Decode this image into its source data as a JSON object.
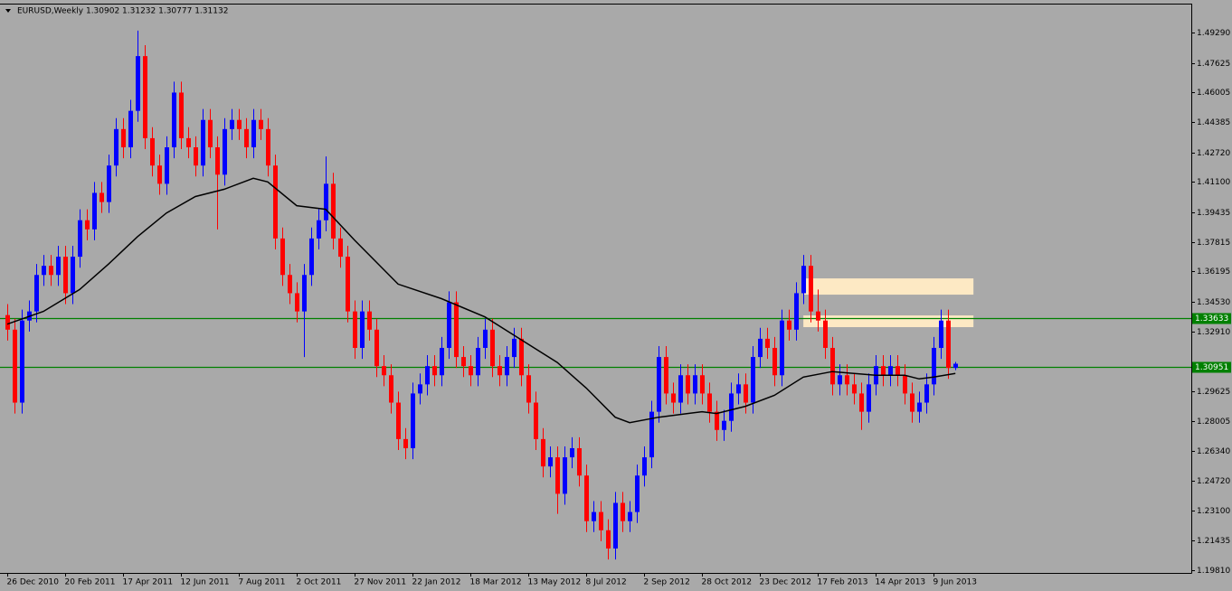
{
  "chart_data": {
    "type": "candlestick",
    "title": "EURUSD,Weekly  1.30902 1.31232 1.30777 1.31132",
    "up_color": "#0000ff",
    "down_color": "#ff0000",
    "xlim": [
      -1,
      163.6
    ],
    "ylim": [
      1.1966,
      1.5083
    ],
    "xticks": [
      {
        "value": 0,
        "label": "26 Dec 2010"
      },
      {
        "value": 8,
        "label": "20 Feb 2011"
      },
      {
        "value": 16,
        "label": "17 Apr 2011"
      },
      {
        "value": 24,
        "label": "12 Jun 2011"
      },
      {
        "value": 32,
        "label": "7 Aug 2011"
      },
      {
        "value": 40,
        "label": "2 Oct 2011"
      },
      {
        "value": 48,
        "label": "27 Nov 2011"
      },
      {
        "value": 56,
        "label": "22 Jan 2012"
      },
      {
        "value": 64,
        "label": "18 Mar 2012"
      },
      {
        "value": 72,
        "label": "13 May 2012"
      },
      {
        "value": 80,
        "label": "8 Jul 2012"
      },
      {
        "value": 88,
        "label": "2 Sep 2012"
      },
      {
        "value": 96,
        "label": "28 Oct 2012"
      },
      {
        "value": 104,
        "label": "23 Dec 2012"
      },
      {
        "value": 112,
        "label": "17 Feb 2013"
      },
      {
        "value": 120,
        "label": "14 Apr 2013"
      },
      {
        "value": 128,
        "label": "9 Jun 2013"
      }
    ],
    "yticks": [
      {
        "value": 1.4929,
        "label": "1.49290"
      },
      {
        "value": 1.47625,
        "label": "1.47625"
      },
      {
        "value": 1.46005,
        "label": "1.46005"
      },
      {
        "value": 1.44385,
        "label": "1.44385"
      },
      {
        "value": 1.4272,
        "label": "1.42720"
      },
      {
        "value": 1.411,
        "label": "1.41100"
      },
      {
        "value": 1.39435,
        "label": "1.39435"
      },
      {
        "value": 1.37815,
        "label": "1.37815"
      },
      {
        "value": 1.36195,
        "label": "1.36195"
      },
      {
        "value": 1.3453,
        "label": "1.34530"
      },
      {
        "value": 1.3291,
        "label": "1.32910"
      },
      {
        "value": 1.29625,
        "label": "1.29625"
      },
      {
        "value": 1.28005,
        "label": "1.28005"
      },
      {
        "value": 1.2634,
        "label": "1.26340"
      },
      {
        "value": 1.2472,
        "label": "1.24720"
      },
      {
        "value": 1.231,
        "label": "1.23100"
      },
      {
        "value": 1.21435,
        "label": "1.21435"
      },
      {
        "value": 1.1981,
        "label": "1.19810"
      }
    ],
    "open": [
      1.338,
      1.33,
      1.29,
      1.335,
      1.34,
      1.36,
      1.365,
      1.36,
      1.37,
      1.35,
      1.37,
      1.39,
      1.385,
      1.405,
      1.4,
      1.42,
      1.44,
      1.43,
      1.45,
      1.48,
      1.435,
      1.42,
      1.41,
      1.43,
      1.46,
      1.435,
      1.43,
      1.42,
      1.445,
      1.43,
      1.415,
      1.44,
      1.445,
      1.44,
      1.43,
      1.445,
      1.44,
      1.42,
      1.38,
      1.36,
      1.35,
      1.34,
      1.36,
      1.38,
      1.39,
      1.41,
      1.38,
      1.37,
      1.34,
      1.32,
      1.34,
      1.33,
      1.31,
      1.305,
      1.29,
      1.27,
      1.265,
      1.295,
      1.3,
      1.31,
      1.305,
      1.32,
      1.345,
      1.315,
      1.31,
      1.305,
      1.32,
      1.33,
      1.31,
      1.305,
      1.315,
      1.325,
      1.305,
      1.29,
      1.27,
      1.255,
      1.26,
      1.24,
      1.26,
      1.265,
      1.25,
      1.225,
      1.23,
      1.22,
      1.21,
      1.235,
      1.225,
      1.23,
      1.25,
      1.26,
      1.285,
      1.315,
      1.295,
      1.29,
      1.305,
      1.295,
      1.305,
      1.295,
      1.285,
      1.275,
      1.28,
      1.295,
      1.3,
      1.29,
      1.315,
      1.325,
      1.32,
      1.305,
      1.335,
      1.33,
      1.35,
      1.365,
      1.34,
      1.335,
      1.32,
      1.3,
      1.305,
      1.3,
      1.295,
      1.285,
      1.3,
      1.31,
      1.305,
      1.31,
      1.305,
      1.295,
      1.285,
      1.29,
      1.3,
      1.32,
      1.335,
      1.30902
    ],
    "high": [
      1.344,
      1.336,
      1.341,
      1.346,
      1.366,
      1.371,
      1.371,
      1.376,
      1.376,
      1.376,
      1.396,
      1.396,
      1.411,
      1.411,
      1.426,
      1.446,
      1.446,
      1.456,
      1.494,
      1.486,
      1.441,
      1.426,
      1.436,
      1.466,
      1.466,
      1.441,
      1.436,
      1.451,
      1.451,
      1.436,
      1.446,
      1.451,
      1.451,
      1.446,
      1.451,
      1.451,
      1.446,
      1.426,
      1.386,
      1.366,
      1.356,
      1.366,
      1.386,
      1.396,
      1.425,
      1.416,
      1.386,
      1.376,
      1.346,
      1.346,
      1.346,
      1.336,
      1.316,
      1.311,
      1.296,
      1.276,
      1.301,
      1.306,
      1.316,
      1.316,
      1.326,
      1.351,
      1.351,
      1.321,
      1.316,
      1.326,
      1.336,
      1.336,
      1.316,
      1.321,
      1.331,
      1.331,
      1.311,
      1.296,
      1.276,
      1.266,
      1.266,
      1.266,
      1.271,
      1.271,
      1.256,
      1.236,
      1.236,
      1.226,
      1.241,
      1.241,
      1.236,
      1.256,
      1.266,
      1.291,
      1.321,
      1.321,
      1.301,
      1.311,
      1.311,
      1.311,
      1.311,
      1.301,
      1.291,
      1.286,
      1.301,
      1.306,
      1.306,
      1.321,
      1.331,
      1.331,
      1.326,
      1.341,
      1.341,
      1.356,
      1.371,
      1.371,
      1.352,
      1.341,
      1.326,
      1.311,
      1.311,
      1.306,
      1.301,
      1.306,
      1.316,
      1.316,
      1.316,
      1.316,
      1.311,
      1.301,
      1.296,
      1.306,
      1.326,
      1.341,
      1.341,
      1.31232
    ],
    "low": [
      1.324,
      1.284,
      1.284,
      1.329,
      1.334,
      1.354,
      1.354,
      1.354,
      1.344,
      1.344,
      1.364,
      1.379,
      1.379,
      1.394,
      1.394,
      1.414,
      1.424,
      1.424,
      1.444,
      1.429,
      1.414,
      1.404,
      1.404,
      1.424,
      1.429,
      1.424,
      1.414,
      1.414,
      1.424,
      1.385,
      1.409,
      1.434,
      1.434,
      1.424,
      1.424,
      1.434,
      1.414,
      1.374,
      1.354,
      1.344,
      1.334,
      1.315,
      1.354,
      1.374,
      1.384,
      1.374,
      1.364,
      1.334,
      1.314,
      1.314,
      1.324,
      1.304,
      1.299,
      1.284,
      1.264,
      1.259,
      1.259,
      1.289,
      1.294,
      1.299,
      1.299,
      1.314,
      1.309,
      1.304,
      1.299,
      1.299,
      1.314,
      1.304,
      1.299,
      1.299,
      1.309,
      1.299,
      1.284,
      1.264,
      1.249,
      1.249,
      1.229,
      1.234,
      1.254,
      1.244,
      1.219,
      1.219,
      1.214,
      1.204,
      1.204,
      1.219,
      1.219,
      1.224,
      1.244,
      1.254,
      1.279,
      1.289,
      1.284,
      1.284,
      1.289,
      1.289,
      1.289,
      1.279,
      1.269,
      1.269,
      1.274,
      1.289,
      1.284,
      1.284,
      1.309,
      1.314,
      1.299,
      1.299,
      1.324,
      1.324,
      1.344,
      1.334,
      1.329,
      1.314,
      1.294,
      1.294,
      1.294,
      1.289,
      1.275,
      1.279,
      1.294,
      1.299,
      1.299,
      1.299,
      1.289,
      1.279,
      1.279,
      1.284,
      1.294,
      1.314,
      1.303,
      1.30777
    ],
    "close": [
      1.33,
      1.29,
      1.335,
      1.34,
      1.36,
      1.365,
      1.36,
      1.37,
      1.35,
      1.37,
      1.39,
      1.385,
      1.405,
      1.4,
      1.42,
      1.44,
      1.43,
      1.45,
      1.48,
      1.435,
      1.42,
      1.41,
      1.43,
      1.46,
      1.435,
      1.43,
      1.42,
      1.445,
      1.43,
      1.415,
      1.44,
      1.445,
      1.44,
      1.43,
      1.445,
      1.44,
      1.42,
      1.38,
      1.36,
      1.35,
      1.34,
      1.36,
      1.38,
      1.39,
      1.41,
      1.38,
      1.37,
      1.34,
      1.32,
      1.34,
      1.33,
      1.31,
      1.305,
      1.29,
      1.27,
      1.265,
      1.295,
      1.3,
      1.31,
      1.305,
      1.32,
      1.345,
      1.315,
      1.31,
      1.305,
      1.32,
      1.33,
      1.31,
      1.305,
      1.315,
      1.325,
      1.305,
      1.29,
      1.27,
      1.255,
      1.26,
      1.24,
      1.26,
      1.265,
      1.25,
      1.225,
      1.23,
      1.22,
      1.21,
      1.235,
      1.225,
      1.23,
      1.25,
      1.26,
      1.285,
      1.315,
      1.295,
      1.29,
      1.305,
      1.295,
      1.305,
      1.295,
      1.285,
      1.275,
      1.28,
      1.295,
      1.3,
      1.29,
      1.315,
      1.325,
      1.32,
      1.305,
      1.335,
      1.33,
      1.35,
      1.365,
      1.34,
      1.335,
      1.32,
      1.3,
      1.305,
      1.3,
      1.295,
      1.285,
      1.3,
      1.31,
      1.305,
      1.31,
      1.305,
      1.295,
      1.285,
      1.29,
      1.3,
      1.32,
      1.335,
      1.309,
      1.31132
    ],
    "moving_average": {
      "color": "#000000",
      "x": [
        0,
        5,
        10,
        14,
        18,
        22,
        26,
        30,
        34,
        36,
        40,
        44,
        48,
        54,
        60,
        66,
        70,
        76,
        80,
        84,
        86,
        90,
        96,
        98,
        102,
        106,
        110,
        114,
        120,
        124,
        126,
        128,
        131
      ],
      "values": [
        1.333,
        1.34,
        1.352,
        1.366,
        1.381,
        1.394,
        1.403,
        1.407,
        1.413,
        1.411,
        1.398,
        1.396,
        1.379,
        1.355,
        1.347,
        1.337,
        1.327,
        1.312,
        1.298,
        1.282,
        1.279,
        1.282,
        1.285,
        1.284,
        1.288,
        1.294,
        1.304,
        1.307,
        1.305,
        1.305,
        1.303,
        1.304,
        1.306
      ]
    },
    "levels": {
      "color": "#008000",
      "values": [
        1.33633,
        1.30951
      ],
      "value_labels": [
        "1.33633",
        "1.30951"
      ]
    },
    "zones": {
      "color": "#fde9c4",
      "x0": [
        110,
        110
      ],
      "x1": [
        133.5,
        133.5
      ],
      "from": [
        1.3492,
        1.3314
      ],
      "to": [
        1.3581,
        1.3378
      ]
    }
  }
}
